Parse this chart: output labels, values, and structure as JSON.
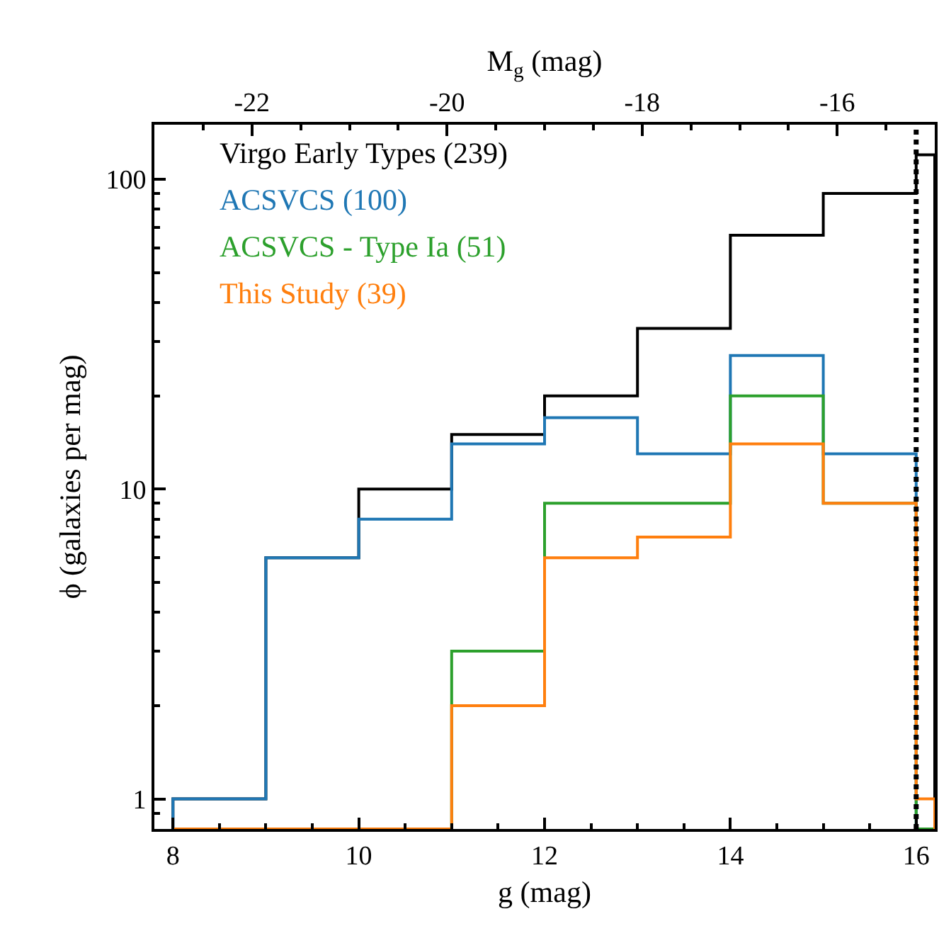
{
  "chart_data": {
    "type": "histogram",
    "xlabel": "g (mag)",
    "ylabel": "ϕ (galaxies per mag)",
    "x2label": "M$_{g}$ (mag)",
    "bins": [
      8,
      9,
      10,
      11,
      12,
      13,
      14,
      15,
      16,
      16.2
    ],
    "series": [
      {
        "name": "Virgo Early Types (239)",
        "color": "#000000",
        "values": [
          1,
          6,
          10,
          15,
          20,
          33,
          66,
          90,
          120
        ]
      },
      {
        "name": "ACSVCS (100)",
        "color": "#1f77b4",
        "values": [
          1,
          6,
          8,
          14,
          17,
          13,
          27,
          13,
          null
        ]
      },
      {
        "name": "ACSVCS - Type Ia (51)",
        "color": "#2ca02c",
        "values": [
          null,
          null,
          null,
          3,
          9,
          9,
          20,
          9,
          null
        ]
      },
      {
        "name": "This Study (39)",
        "color": "#ff7f0e",
        "values": [
          null,
          null,
          null,
          2,
          6,
          7,
          14,
          9,
          1
        ]
      }
    ],
    "xlim": [
      7.8,
      16.2
    ],
    "xticks": [
      8,
      10,
      12,
      14,
      16
    ],
    "ylim": [
      0.8,
      150
    ],
    "yticks": [
      1,
      10,
      100
    ],
    "log": "y",
    "x2lim": [
      -23.0,
      -15.0
    ],
    "x2ticks": [
      -22,
      -20,
      -18,
      -16
    ],
    "ref_lines": [
      {
        "axis": "x",
        "value": 16,
        "color": "#000000",
        "line_style": "dotted"
      }
    ],
    "legend": "top left"
  }
}
